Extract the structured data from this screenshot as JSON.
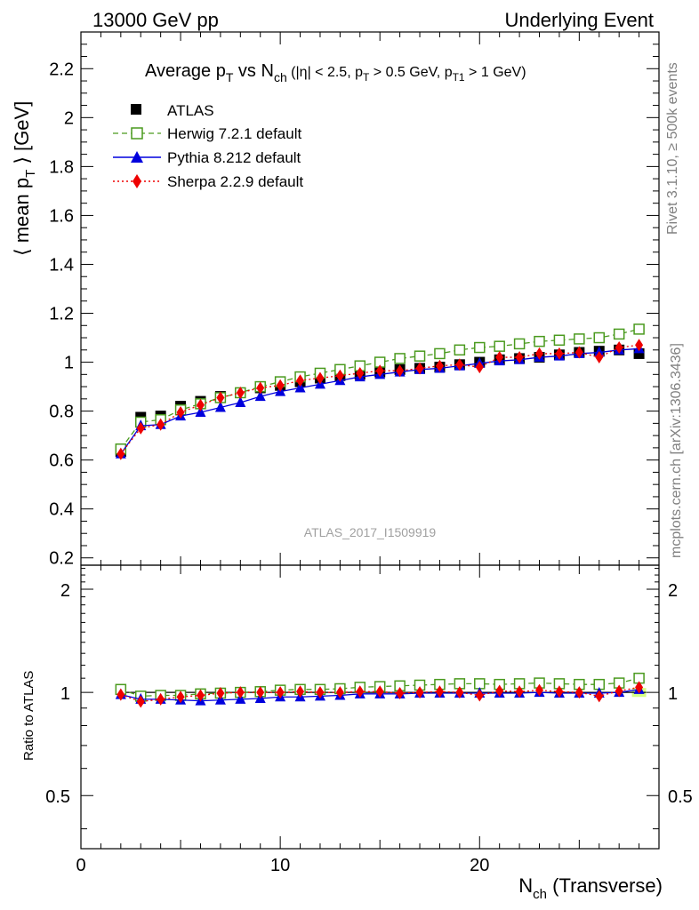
{
  "header": {
    "left": "13000 GeV pp",
    "right": "Underlying Event"
  },
  "title": {
    "main": "Average p",
    "main_sub1": "T",
    "vs": " vs N",
    "vs_sub": "ch",
    "cuts_a": " (|η| < 2.5, p",
    "cuts_sub1": "T",
    "cuts_b": " > 0.5 GeV, p",
    "cuts_sub2": "T1",
    "cuts_c": " > 1 GeV)"
  },
  "side_labels": {
    "rivet": "Rivet 3.1.10, ≥ 500k events",
    "mcplots": "mcplots.cern.ch [arXiv:1306.3436]"
  },
  "watermark": "ATLAS_2017_I1509919",
  "y_label_main": {
    "pre": "⟨ mean p",
    "sub": "T",
    "post": " ⟩ [GeV]"
  },
  "y_label_ratio": "Ratio to ATLAS",
  "x_label": {
    "pre": "N",
    "sub": "ch",
    "post": " (Transverse)"
  },
  "legend": [
    {
      "key": "atlas",
      "label": "ATLAS"
    },
    {
      "key": "herwig",
      "label": "Herwig 7.2.1 default"
    },
    {
      "key": "pythia",
      "label": "Pythia 8.212 default"
    },
    {
      "key": "sherpa",
      "label": "Sherpa 2.2.9 default"
    }
  ],
  "colors": {
    "atlas": "#000000",
    "herwig": "#4a9a1e",
    "pythia": "#0000dd",
    "sherpa": "#ee0000",
    "band": "#ccff66"
  },
  "chart_data": {
    "type": "line",
    "x": [
      2,
      3,
      4,
      5,
      6,
      7,
      8,
      9,
      10,
      11,
      12,
      13,
      14,
      15,
      16,
      17,
      18,
      19,
      20,
      21,
      22,
      23,
      24,
      25,
      26,
      27,
      28
    ],
    "xlim": [
      0,
      29
    ],
    "xticks": [
      0,
      10,
      20
    ],
    "main": {
      "ylim": [
        0.17,
        2.35
      ],
      "yticks": [
        0.2,
        0.4,
        0.6,
        0.8,
        1,
        1.2,
        1.4,
        1.6,
        1.8,
        2,
        2.2
      ],
      "ytick_labels": [
        "0.2",
        "0.4",
        "0.6",
        "0.8",
        "1",
        "1.2",
        "1.4",
        "1.6",
        "1.8",
        "2",
        "2.2"
      ]
    },
    "ratio": {
      "ylim": [
        0.35,
        2.35
      ],
      "yticks": [
        0.5,
        1,
        2
      ],
      "ytick_labels": [
        "0.5",
        "1",
        "2"
      ]
    },
    "series": [
      {
        "name": "ATLAS",
        "key": "atlas",
        "marker": "square",
        "values": [
          0.635,
          0.775,
          0.78,
          0.82,
          0.84,
          0.86,
          0.875,
          0.895,
          0.905,
          0.92,
          0.935,
          0.945,
          0.95,
          0.96,
          0.97,
          0.975,
          0.98,
          0.99,
          1.0,
          1.01,
          1.015,
          1.02,
          1.03,
          1.04,
          1.045,
          1.05,
          1.035
        ]
      },
      {
        "name": "Herwig 7.2.1 default",
        "key": "herwig",
        "marker": "open-square",
        "dash": "6,4",
        "values": [
          0.645,
          0.755,
          0.765,
          0.805,
          0.83,
          0.855,
          0.875,
          0.9,
          0.92,
          0.94,
          0.955,
          0.97,
          0.985,
          1.0,
          1.015,
          1.025,
          1.035,
          1.05,
          1.06,
          1.065,
          1.075,
          1.085,
          1.09,
          1.095,
          1.1,
          1.115,
          1.135
        ]
      },
      {
        "name": "Pythia 8.212 default",
        "key": "pythia",
        "marker": "triangle",
        "values": [
          0.625,
          0.74,
          0.745,
          0.78,
          0.795,
          0.815,
          0.835,
          0.86,
          0.88,
          0.895,
          0.91,
          0.925,
          0.94,
          0.95,
          0.96,
          0.97,
          0.975,
          0.985,
          0.995,
          1.005,
          1.01,
          1.02,
          1.025,
          1.035,
          1.04,
          1.05,
          1.055
        ]
      },
      {
        "name": "Sherpa 2.2.9 default",
        "key": "sherpa",
        "marker": "diamond",
        "dash": "2,3",
        "values": [
          0.625,
          0.73,
          0.745,
          0.795,
          0.825,
          0.855,
          0.875,
          0.895,
          0.905,
          0.925,
          0.935,
          0.945,
          0.955,
          0.965,
          0.965,
          0.975,
          0.985,
          0.99,
          0.98,
          1.02,
          1.02,
          1.035,
          1.035,
          1.04,
          1.02,
          1.06,
          1.07
        ]
      }
    ],
    "ratio_series": [
      {
        "key": "herwig",
        "values": [
          1.02,
          0.975,
          0.98,
          0.98,
          0.99,
          0.995,
          1.0,
          1.005,
          1.015,
          1.02,
          1.02,
          1.025,
          1.035,
          1.04,
          1.045,
          1.05,
          1.055,
          1.06,
          1.06,
          1.055,
          1.06,
          1.065,
          1.06,
          1.055,
          1.055,
          1.065,
          1.1
        ]
      },
      {
        "key": "pythia",
        "values": [
          0.985,
          0.955,
          0.955,
          0.95,
          0.945,
          0.95,
          0.955,
          0.96,
          0.97,
          0.97,
          0.975,
          0.98,
          0.99,
          0.99,
          0.99,
          0.995,
          0.995,
          0.995,
          0.995,
          0.995,
          0.995,
          1.0,
          0.995,
          0.995,
          0.995,
          1.0,
          1.02
        ]
      },
      {
        "key": "sherpa",
        "values": [
          0.985,
          0.94,
          0.955,
          0.97,
          0.98,
          0.995,
          1.0,
          1.0,
          1.0,
          1.005,
          1.0,
          1.0,
          1.005,
          1.005,
          0.995,
          1.0,
          1.005,
          1.0,
          0.98,
          1.01,
          1.005,
          1.015,
          1.005,
          1.0,
          0.975,
          1.01,
          1.035
        ]
      }
    ]
  }
}
